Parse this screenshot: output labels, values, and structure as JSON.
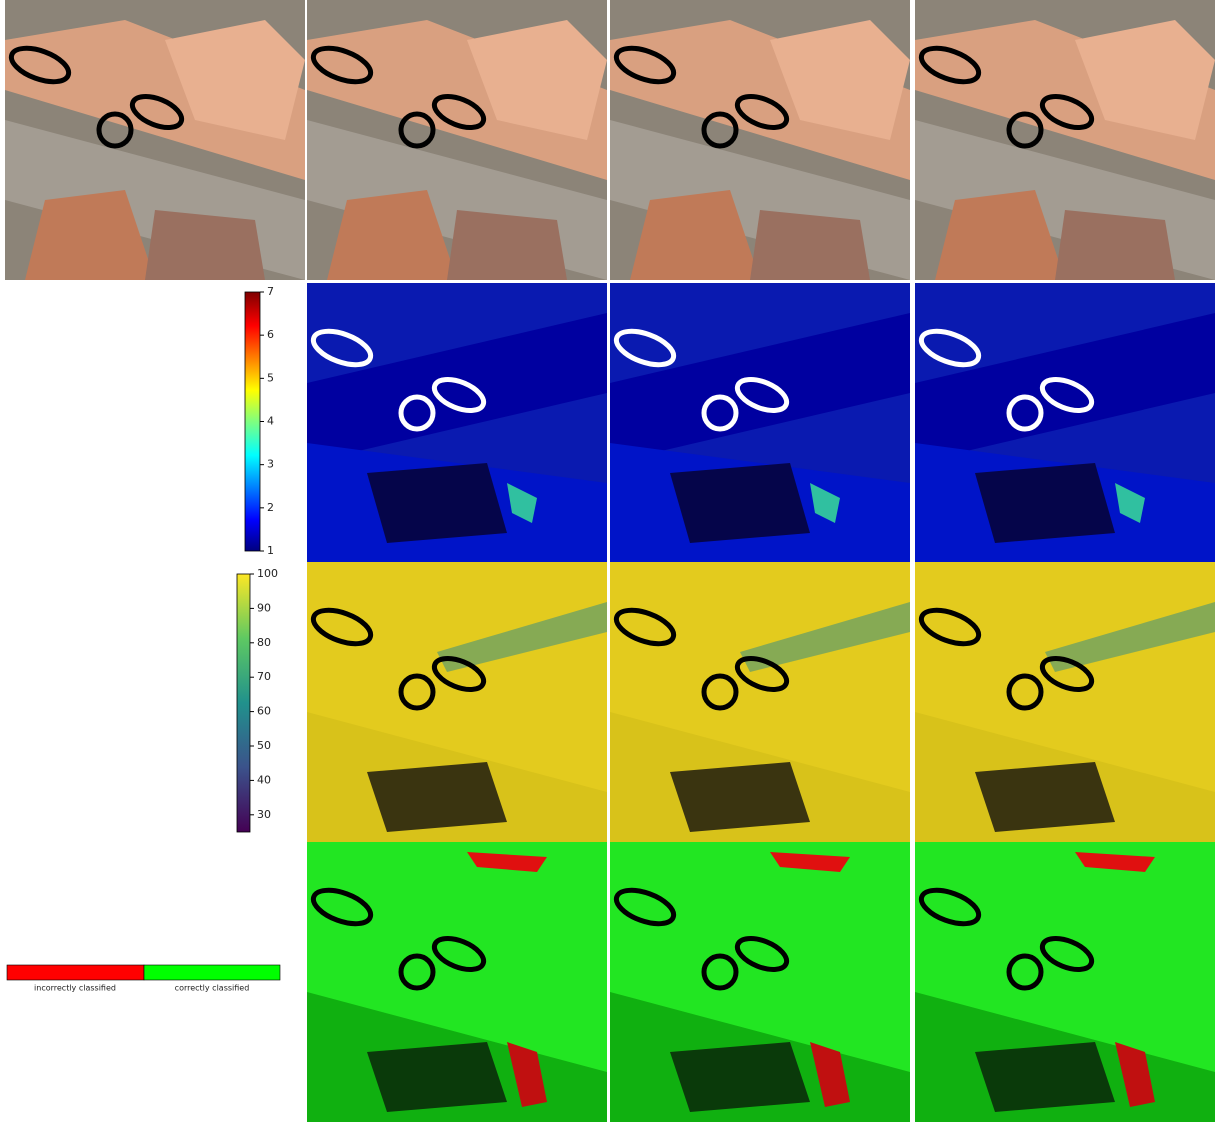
{
  "colorbars": [
    {
      "range": [
        1,
        7
      ],
      "ticks": [
        1,
        2,
        3,
        4,
        5,
        6,
        7
      ]
    },
    {
      "range": [
        25,
        100
      ],
      "ticks": [
        30,
        40,
        50,
        60,
        70,
        80,
        90,
        100
      ]
    }
  ],
  "legend": {
    "items": [
      "incorrectly classified",
      "correctly classified"
    ]
  }
}
